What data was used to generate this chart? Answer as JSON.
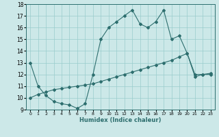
{
  "xlabel": "Humidex (Indice chaleur)",
  "bg_color": "#cce8e8",
  "line_color": "#2d6e6e",
  "grid_color": "#99cccc",
  "xlim": [
    -0.5,
    23.5
  ],
  "ylim": [
    9,
    18
  ],
  "x_upper": [
    0,
    1,
    2,
    3,
    4,
    5,
    6,
    7,
    8,
    9,
    10,
    11,
    12,
    13,
    14,
    15,
    16,
    17,
    18,
    19,
    20,
    21,
    22,
    23
  ],
  "y_upper": [
    13.0,
    11.0,
    10.2,
    9.7,
    9.5,
    9.4,
    9.1,
    9.5,
    12.0,
    15.0,
    16.0,
    16.5,
    17.0,
    17.5,
    16.3,
    16.0,
    16.5,
    17.5,
    15.0,
    15.3,
    13.8,
    12.0,
    12.0,
    12.0
  ],
  "x_lower": [
    0,
    1,
    2,
    3,
    4,
    5,
    6,
    7,
    8,
    9,
    10,
    11,
    12,
    13,
    14,
    15,
    16,
    17,
    18,
    19,
    20,
    21,
    22,
    23
  ],
  "y_lower": [
    10.0,
    10.3,
    10.5,
    10.7,
    10.8,
    10.9,
    11.0,
    11.1,
    11.2,
    11.4,
    11.6,
    11.8,
    12.0,
    12.2,
    12.4,
    12.6,
    12.8,
    13.0,
    13.2,
    13.5,
    13.8,
    11.8,
    12.0,
    12.1
  ],
  "xticks": [
    0,
    1,
    2,
    3,
    4,
    5,
    6,
    7,
    8,
    9,
    10,
    11,
    12,
    13,
    14,
    15,
    16,
    17,
    18,
    19,
    20,
    21,
    22,
    23
  ],
  "yticks": [
    9,
    10,
    11,
    12,
    13,
    14,
    15,
    16,
    17,
    18
  ],
  "markersize": 2.0,
  "linewidth": 0.8
}
